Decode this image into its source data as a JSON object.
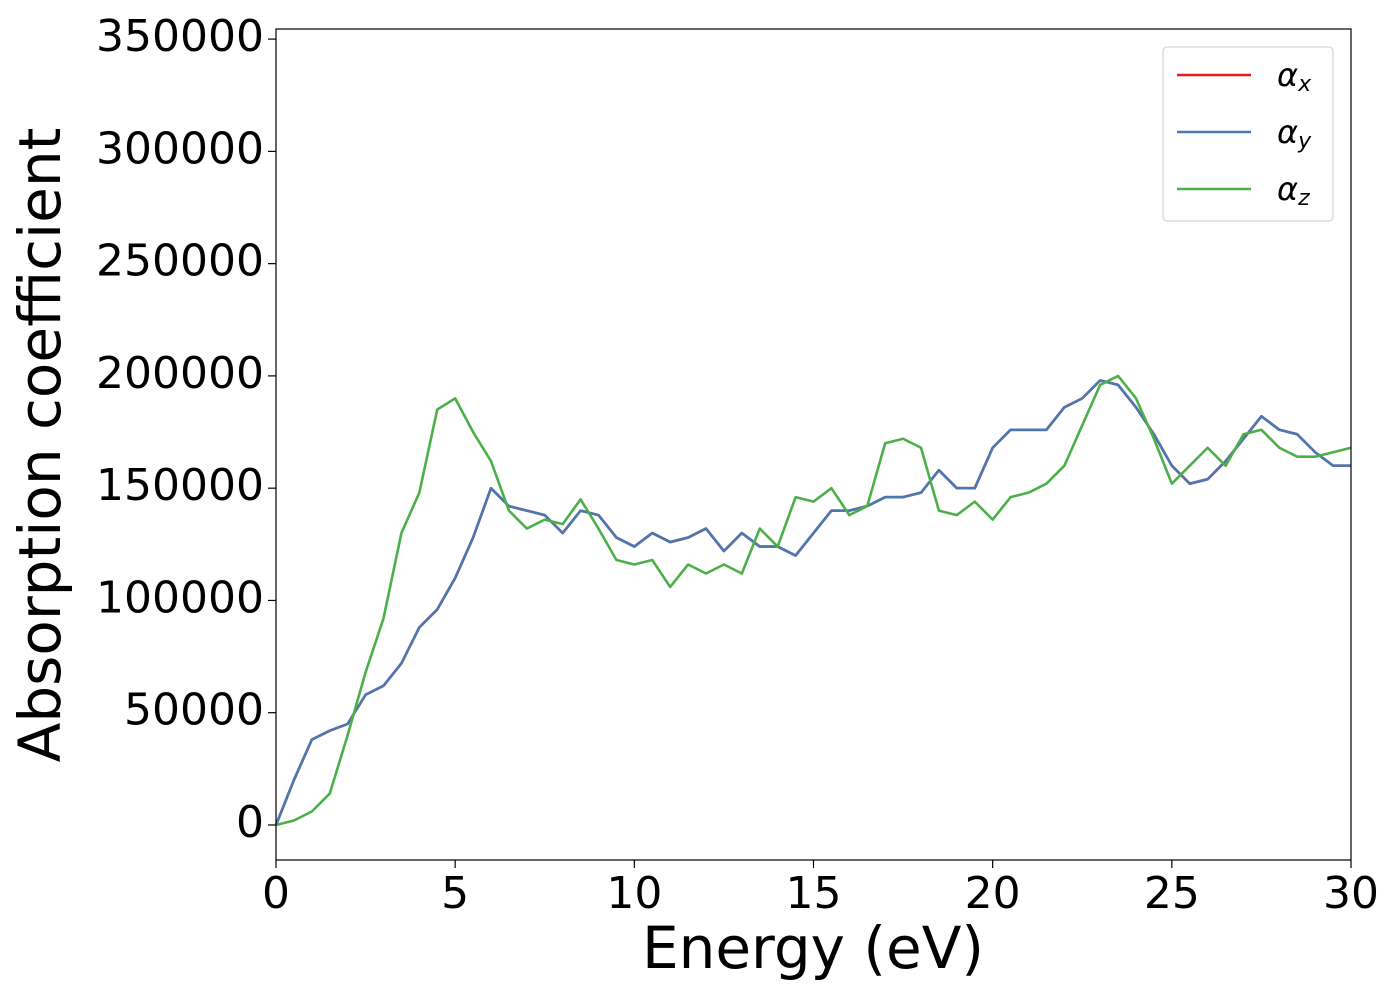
{
  "chart_data": {
    "type": "line",
    "xlabel": "Energy (eV)",
    "ylabel": "Absorption coefficient",
    "x": [
      0,
      0.5,
      1,
      1.5,
      2,
      2.5,
      3,
      3.5,
      4,
      4.5,
      5,
      5.5,
      6,
      6.5,
      7,
      7.5,
      8,
      8.5,
      9,
      9.5,
      10,
      10.5,
      11,
      11.5,
      12,
      12.5,
      13,
      13.5,
      14,
      14.5,
      15,
      15.5,
      16,
      16.5,
      17,
      17.5,
      18,
      18.5,
      19,
      19.5,
      20,
      20.5,
      21,
      21.5,
      22,
      22.5,
      23,
      23.5,
      24,
      24.5,
      25,
      25.5,
      26,
      26.5,
      27,
      27.5,
      28,
      28.5,
      29,
      29.5,
      30
    ],
    "series": [
      {
        "name": "αx",
        "color": "#e41a1c",
        "values": [
          0,
          20000,
          38000,
          42000,
          45000,
          58000,
          62000,
          72000,
          88000,
          96000,
          110000,
          128000,
          150000,
          142000,
          140000,
          138000,
          130000,
          140000,
          138000,
          128000,
          124000,
          130000,
          126000,
          128000,
          132000,
          122000,
          130000,
          124000,
          124000,
          120000,
          130000,
          140000,
          140000,
          142000,
          146000,
          146000,
          148000,
          158000,
          150000,
          150000,
          168000,
          176000,
          176000,
          176000,
          186000,
          190000,
          198000,
          196000,
          186000,
          174000,
          160000,
          152000,
          154000,
          162000,
          172000,
          182000,
          176000,
          174000,
          166000,
          160000,
          160000
        ]
      },
      {
        "name": "αy",
        "color": "#4a78b0",
        "values": [
          0,
          20000,
          38000,
          42000,
          45000,
          58000,
          62000,
          72000,
          88000,
          96000,
          110000,
          128000,
          150000,
          142000,
          140000,
          138000,
          130000,
          140000,
          138000,
          128000,
          124000,
          130000,
          126000,
          128000,
          132000,
          122000,
          130000,
          124000,
          124000,
          120000,
          130000,
          140000,
          140000,
          142000,
          146000,
          146000,
          148000,
          158000,
          150000,
          150000,
          168000,
          176000,
          176000,
          176000,
          186000,
          190000,
          198000,
          196000,
          186000,
          174000,
          160000,
          152000,
          154000,
          162000,
          172000,
          182000,
          176000,
          174000,
          166000,
          160000,
          160000
        ]
      },
      {
        "name": "αz",
        "color": "#4daf4a",
        "values": [
          0,
          2000,
          6000,
          14000,
          40000,
          68000,
          92000,
          130000,
          148000,
          185000,
          190000,
          175000,
          162000,
          140000,
          132000,
          136000,
          134000,
          145000,
          132000,
          118000,
          116000,
          118000,
          106000,
          116000,
          112000,
          116000,
          112000,
          132000,
          124000,
          146000,
          144000,
          150000,
          138000,
          142000,
          170000,
          172000,
          168000,
          140000,
          138000,
          144000,
          136000,
          146000,
          148000,
          152000,
          160000,
          178000,
          196000,
          200000,
          190000,
          172000,
          152000,
          160000,
          168000,
          160000,
          174000,
          176000,
          168000,
          164000,
          164000,
          166000,
          168000
        ]
      }
    ],
    "xlim": [
      0,
      30
    ],
    "xticks": [
      0,
      5,
      10,
      15,
      20,
      25,
      30
    ],
    "ylim": [
      -15600,
      354500
    ],
    "yticks": [
      0,
      50000,
      100000,
      150000,
      200000,
      250000,
      300000,
      350000
    ],
    "legend": "upper right",
    "grid": false
  }
}
